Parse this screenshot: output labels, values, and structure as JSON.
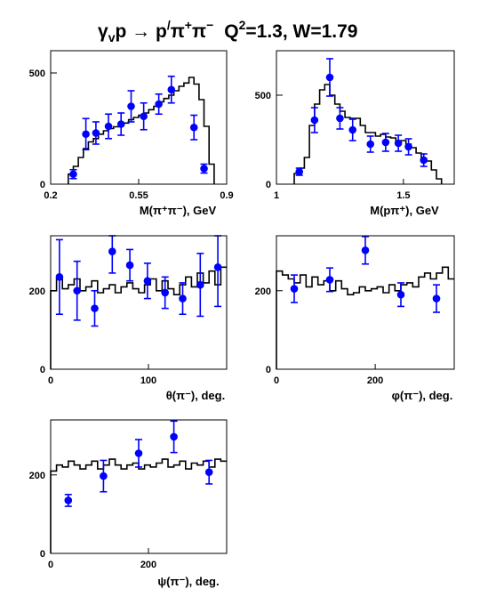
{
  "figure": {
    "title": "γ_v p → p′π⁺π⁻   Q²=1.3, W=1.79",
    "title_parts": {
      "gamma": "γ",
      "v_sub": "v",
      "p1": "p ",
      "arrow": "→",
      "p2": " p",
      "prime": "/",
      "pi1": "π",
      "plus": "+",
      "pi2": "π",
      "minus": "−",
      "q": "Q",
      "q_exp": "2",
      "rest": "=1.3, W=1.79"
    }
  },
  "colors": {
    "data_points": "#0000ff",
    "error_bars": "#0000ff",
    "histogram": "#000000",
    "axes": "#000000",
    "background": "#ffffff"
  },
  "chart_data": [
    {
      "type": "scatter",
      "xlabel": "M(π⁺π⁻), GeV",
      "xlim": [
        0.2,
        0.9
      ],
      "ylim": [
        0,
        600
      ],
      "xticks": [
        0.2,
        0.55,
        0.9
      ],
      "xtick_labels": [
        "0.2",
        "0.55",
        "0.9"
      ],
      "yticks": [
        0,
        500
      ],
      "ytick_labels": [
        "0",
        "500"
      ],
      "series": [
        {
          "kind": "histogram",
          "edges": [
            0.27,
            0.29,
            0.31,
            0.33,
            0.35,
            0.37,
            0.39,
            0.41,
            0.43,
            0.45,
            0.47,
            0.49,
            0.51,
            0.53,
            0.55,
            0.57,
            0.59,
            0.61,
            0.63,
            0.65,
            0.67,
            0.69,
            0.71,
            0.73,
            0.75,
            0.77,
            0.79,
            0.81,
            0.83,
            0.85
          ],
          "values": [
            45,
            80,
            120,
            160,
            190,
            205,
            225,
            240,
            250,
            258,
            265,
            275,
            290,
            300,
            310,
            320,
            335,
            350,
            370,
            385,
            400,
            420,
            440,
            455,
            480,
            450,
            380,
            260,
            90
          ]
        },
        {
          "kind": "points",
          "x": [
            0.29,
            0.34,
            0.38,
            0.43,
            0.48,
            0.52,
            0.57,
            0.63,
            0.68,
            0.77,
            0.81
          ],
          "y": [
            45,
            225,
            230,
            260,
            270,
            350,
            305,
            360,
            425,
            255,
            70
          ],
          "err": [
            20,
            70,
            50,
            55,
            50,
            70,
            60,
            45,
            60,
            55,
            20
          ]
        }
      ]
    },
    {
      "type": "scatter",
      "xlabel": "M(pπ⁺), GeV",
      "xlim": [
        1.0,
        1.7
      ],
      "ylim": [
        0,
        750
      ],
      "xticks": [
        1.0,
        1.5
      ],
      "xtick_labels": [
        "1",
        "1.5"
      ],
      "yticks": [
        0,
        500
      ],
      "ytick_labels": [
        "0",
        "500"
      ],
      "series": [
        {
          "kind": "histogram",
          "edges": [
            1.07,
            1.09,
            1.11,
            1.13,
            1.15,
            1.17,
            1.19,
            1.21,
            1.23,
            1.25,
            1.27,
            1.29,
            1.31,
            1.33,
            1.35,
            1.37,
            1.39,
            1.41,
            1.43,
            1.45,
            1.47,
            1.49,
            1.51,
            1.53,
            1.55,
            1.57,
            1.59,
            1.61,
            1.63,
            1.65
          ],
          "values": [
            60,
            90,
            150,
            330,
            450,
            530,
            560,
            500,
            450,
            410,
            375,
            370,
            370,
            330,
            290,
            290,
            270,
            280,
            265,
            260,
            240,
            245,
            225,
            205,
            175,
            145,
            130,
            80,
            30
          ]
        },
        {
          "kind": "points",
          "x": [
            1.09,
            1.15,
            1.21,
            1.25,
            1.3,
            1.37,
            1.43,
            1.48,
            1.52,
            1.58
          ],
          "y": [
            70,
            360,
            600,
            370,
            305,
            225,
            235,
            230,
            210,
            135
          ],
          "err": [
            20,
            70,
            105,
            60,
            60,
            45,
            50,
            45,
            45,
            35
          ]
        }
      ]
    },
    {
      "type": "scatter",
      "xlabel": "θ(π⁻), deg.",
      "xlim": [
        0,
        180
      ],
      "ylim": [
        0,
        340
      ],
      "xticks": [
        0,
        100
      ],
      "xtick_labels": [
        "0",
        "100"
      ],
      "yticks": [
        0,
        200
      ],
      "ytick_labels": [
        "0",
        "200"
      ],
      "series": [
        {
          "kind": "histogram",
          "edges": [
            0,
            6,
            12,
            18,
            24,
            30,
            36,
            42,
            48,
            54,
            60,
            66,
            72,
            78,
            84,
            90,
            96,
            102,
            108,
            114,
            120,
            126,
            132,
            138,
            144,
            150,
            156,
            162,
            168,
            174,
            180
          ],
          "values": [
            200,
            230,
            205,
            215,
            230,
            200,
            210,
            225,
            195,
            205,
            215,
            195,
            210,
            220,
            205,
            195,
            215,
            230,
            200,
            225,
            205,
            190,
            215,
            235,
            210,
            245,
            220,
            250,
            215,
            260
          ]
        },
        {
          "kind": "points",
          "x": [
            9,
            27,
            45,
            63,
            81,
            99,
            117,
            135,
            153,
            171
          ],
          "y": [
            235,
            200,
            155,
            300,
            265,
            225,
            195,
            180,
            215,
            260
          ],
          "err": [
            95,
            75,
            45,
            55,
            40,
            45,
            40,
            40,
            80,
            100
          ]
        }
      ]
    },
    {
      "type": "scatter",
      "xlabel": "φ(π⁻), deg.",
      "xlim": [
        0,
        360
      ],
      "ylim": [
        0,
        340
      ],
      "xticks": [
        0,
        200
      ],
      "xtick_labels": [
        "0",
        "200"
      ],
      "yticks": [
        0,
        200
      ],
      "ytick_labels": [
        "0",
        "200"
      ],
      "series": [
        {
          "kind": "histogram",
          "edges": [
            0,
            12,
            24,
            36,
            48,
            60,
            72,
            84,
            96,
            108,
            120,
            132,
            144,
            156,
            168,
            180,
            192,
            204,
            216,
            228,
            240,
            252,
            264,
            276,
            288,
            300,
            312,
            324,
            336,
            348,
            360
          ],
          "values": [
            250,
            240,
            230,
            220,
            240,
            210,
            235,
            215,
            225,
            200,
            225,
            205,
            190,
            195,
            210,
            200,
            205,
            210,
            195,
            215,
            200,
            215,
            220,
            210,
            235,
            245,
            230,
            245,
            260,
            230
          ]
        },
        {
          "kind": "points",
          "x": [
            36,
            108,
            180,
            252,
            324
          ],
          "y": [
            205,
            228,
            303,
            190,
            180
          ],
          "err": [
            35,
            30,
            35,
            30,
            35
          ]
        }
      ]
    },
    {
      "type": "scatter",
      "xlabel": "ψ(π⁻), deg.",
      "xlim": [
        0,
        360
      ],
      "ylim": [
        0,
        340
      ],
      "xticks": [
        0,
        200
      ],
      "xtick_labels": [
        "0",
        "200"
      ],
      "yticks": [
        0,
        200
      ],
      "ytick_labels": [
        "0",
        "200"
      ],
      "series": [
        {
          "kind": "histogram",
          "edges": [
            0,
            12,
            24,
            36,
            48,
            60,
            72,
            84,
            96,
            108,
            120,
            132,
            144,
            156,
            168,
            180,
            192,
            204,
            216,
            228,
            240,
            252,
            264,
            276,
            288,
            300,
            312,
            324,
            336,
            348,
            360
          ],
          "values": [
            210,
            225,
            220,
            235,
            225,
            215,
            225,
            235,
            215,
            225,
            240,
            225,
            215,
            225,
            230,
            215,
            225,
            220,
            230,
            240,
            220,
            225,
            235,
            215,
            230,
            225,
            235,
            220,
            240,
            235
          ]
        },
        {
          "kind": "points",
          "x": [
            36,
            108,
            180,
            252,
            324
          ],
          "y": [
            135,
            197,
            255,
            297,
            207
          ],
          "err": [
            15,
            40,
            35,
            40,
            30
          ]
        }
      ]
    }
  ]
}
